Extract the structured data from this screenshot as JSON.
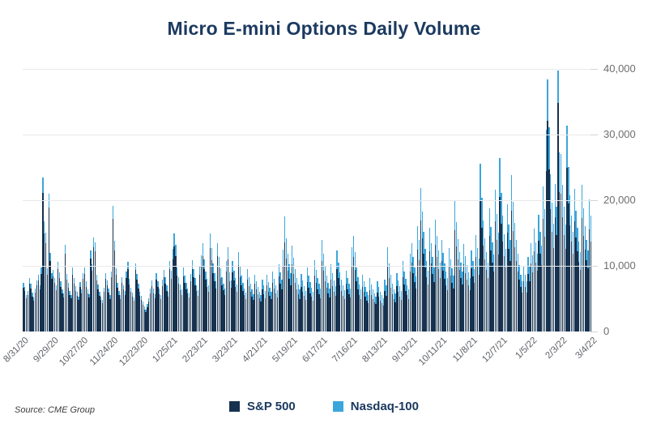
{
  "title": "Micro E-mini Options Daily Volume",
  "source_note": "Source: CME Group",
  "colors": {
    "sp500": "#16324F",
    "nasdaq": "#3BA6DC",
    "title_text": "#1C3A60",
    "axis_label_gray": "#6E6E6E",
    "gridline": "#E9E9E9"
  },
  "legend": {
    "items": [
      {
        "label": "S&P 500",
        "color": "#16324F"
      },
      {
        "label": "Nasdaq-100",
        "color": "#3BA6DC"
      }
    ]
  },
  "chart_data": {
    "type": "bar",
    "stacked": true,
    "title": "Micro E-mini Options Daily Volume",
    "xlabel": "",
    "ylabel": "",
    "ylim": [
      0,
      40000
    ],
    "y_ticks": [
      0,
      10000,
      20000,
      30000,
      40000
    ],
    "y_tick_labels": [
      "0",
      "10,000",
      "20,000",
      "30,000",
      "40,000"
    ],
    "y_axis_side": "right",
    "grid": "horizontal",
    "legend_position": "bottom",
    "x_tick_every": 20,
    "x_tick_labels": [
      "8/31/20",
      "9/29/20",
      "10/27/20",
      "11/24/20",
      "12/23/20",
      "1/25/21",
      "2/23/21",
      "3/23/21",
      "4/21/21",
      "5/19/21",
      "6/17/21",
      "7/16/21",
      "8/13/21",
      "9/13/21",
      "10/11/21",
      "11/8/21",
      "12/7/21",
      "1/5/22",
      "2/3/22",
      "3/4/22"
    ],
    "series": [
      {
        "name": "S&P 500",
        "color": "#16324F",
        "values": [
          6700,
          6150,
          5100,
          5600,
          7300,
          6600,
          5350,
          4700,
          5950,
          7000,
          7800,
          6400,
          8800,
          21100,
          15000,
          13500,
          8650,
          18900,
          10750,
          8000,
          8450,
          7380,
          6300,
          9500,
          8100,
          6840,
          5760,
          5220,
          11850,
          7920,
          6660,
          5580,
          5040,
          8700,
          7290,
          6200,
          5400,
          4770,
          6750,
          5760,
          8000,
          8800,
          6840,
          5760,
          5130,
          11150,
          9200,
          12850,
          12250,
          7830,
          6480,
          5490,
          4770,
          4320,
          6030,
          8000,
          7020,
          5940,
          4950,
          8250,
          17200,
          12400,
          8600,
          6660,
          5580,
          4950,
          7450,
          6390,
          5580,
          8150,
          9500,
          7200,
          6030,
          5310,
          4680,
          9350,
          7920,
          6570,
          5490,
          4860,
          4100,
          3380,
          2940,
          3740,
          4540,
          5780,
          6900,
          5840,
          5040,
          7850,
          6800,
          5720,
          4930,
          6950,
          8250,
          7300,
          6150,
          5360,
          9450,
          8050,
          11000,
          12950,
          11500,
          8550,
          7250,
          6300,
          5600,
          8450,
          7400,
          6450,
          5750,
          5140,
          7650,
          9450,
          8250,
          7050,
          6180,
          5480,
          8600,
          10050,
          11500,
          9450,
          7900,
          6850,
          6100,
          12700,
          10850,
          8900,
          7600,
          6600,
          11500,
          9700,
          8200,
          7100,
          6250,
          5550,
          9100,
          10950,
          7650,
          6650,
          9050,
          7800,
          6800,
          6050,
          10100,
          8300,
          7100,
          6200,
          5550,
          4950,
          7950,
          6950,
          6100,
          5350,
          4770,
          7300,
          6450,
          5700,
          5100,
          4600,
          6450,
          5700,
          5050,
          7000,
          6100,
          5450,
          4900,
          7400,
          6500,
          5800,
          5150,
          8350,
          7300,
          6400,
          9900,
          13600,
          11100,
          9300,
          8050,
          7050,
          10200,
          8750,
          7400,
          6400,
          5650,
          5000,
          6850,
          6100,
          5400,
          4850,
          7550,
          6650,
          5850,
          5250,
          4700,
          8500,
          7350,
          6400,
          5700,
          5100,
          10800,
          9200,
          7700,
          6650,
          5800,
          5150,
          7950,
          6950,
          6100,
          5400,
          9550,
          8200,
          7000,
          6150,
          5450,
          4900,
          7250,
          6400,
          5700,
          5150,
          9950,
          11350,
          9400,
          7600,
          6450,
          5600,
          5000,
          6750,
          6000,
          5300,
          4750,
          4300,
          6300,
          5600,
          5000,
          4500,
          4150,
          5900,
          5300,
          4750,
          4350,
          3950,
          6150,
          5450,
          9950,
          8100,
          6700,
          5700,
          5000,
          4500,
          6900,
          6050,
          5350,
          4800,
          8300,
          7150,
          6200,
          5500,
          5000,
          9150,
          10500,
          8850,
          7500,
          6500,
          12500,
          10850,
          16900,
          14200,
          11800,
          9750,
          8300,
          7200,
          12250,
          10400,
          8750,
          7500,
          13250,
          11300,
          9550,
          8150,
          10800,
          9300,
          8050,
          7050,
          6300,
          9850,
          8550,
          7450,
          6600,
          15450,
          12950,
          10950,
          9400,
          8150,
          7150,
          10300,
          8900,
          7850,
          7000,
          6300,
          9600,
          8400,
          7400,
          11400,
          9850,
          8600,
          19850,
          15800,
          13100,
          11000,
          9400,
          8150,
          14600,
          12350,
          10550,
          9100,
          16750,
          13900,
          11700,
          20500,
          16400,
          13650,
          11500,
          9750,
          15050,
          12650,
          10800,
          18450,
          15300,
          12800,
          10800,
          9150,
          7850,
          6750,
          5900,
          7700,
          6750,
          5950,
          8750,
          7700,
          10400,
          9000,
          12200,
          10550,
          9250,
          13800,
          11800,
          10150,
          17150,
          14450,
          24450,
          32100,
          24700,
          18600,
          15200,
          12700,
          17450,
          14750,
          34800,
          21200,
          20950,
          17400,
          14750,
          12650,
          25000,
          19500,
          16150,
          13650,
          11800,
          16850,
          14300,
          12250,
          10650,
          9400,
          17300,
          14600,
          12500,
          10850,
          9600,
          15600,
          13650
        ]
      },
      {
        "name": "Nasdaq-100",
        "color": "#3BA6DC",
        "values": [
          700,
          650,
          500,
          600,
          800,
          700,
          550,
          500,
          650,
          800,
          900,
          700,
          1000,
          2300,
          1800,
          1600,
          950,
          2100,
          1250,
          900,
          950,
          820,
          700,
          1100,
          900,
          760,
          640,
          580,
          1350,
          880,
          740,
          620,
          560,
          1000,
          810,
          700,
          600,
          530,
          750,
          640,
          900,
          1000,
          760,
          640,
          570,
          1250,
          1000,
          1450,
          1350,
          870,
          720,
          610,
          530,
          480,
          670,
          900,
          780,
          660,
          550,
          950,
          1900,
          1400,
          1000,
          740,
          620,
          550,
          850,
          710,
          620,
          950,
          1100,
          800,
          670,
          590,
          520,
          1050,
          880,
          730,
          610,
          540,
          500,
          420,
          360,
          460,
          560,
          720,
          900,
          760,
          660,
          1050,
          900,
          780,
          670,
          950,
          1150,
          1000,
          850,
          740,
          1350,
          1150,
          1600,
          1950,
          1700,
          1250,
          1050,
          900,
          800,
          1250,
          1100,
          950,
          850,
          760,
          1150,
          1450,
          1250,
          1050,
          920,
          820,
          1300,
          1550,
          1900,
          1550,
          1300,
          1150,
          1000,
          2200,
          1850,
          1500,
          1300,
          1100,
          2000,
          1700,
          1400,
          1200,
          1050,
          950,
          1600,
          1950,
          1350,
          1150,
          1750,
          1500,
          1300,
          1150,
          2000,
          1600,
          1400,
          1200,
          1050,
          950,
          1550,
          1350,
          1200,
          1050,
          930,
          1400,
          1250,
          1100,
          1000,
          900,
          1450,
          1300,
          1150,
          1600,
          1400,
          1250,
          1100,
          1700,
          1500,
          1300,
          1150,
          1950,
          1700,
          1500,
          2600,
          3900,
          3100,
          2500,
          2150,
          1850,
          2900,
          2450,
          2100,
          1800,
          1550,
          1400,
          1950,
          1700,
          1500,
          1350,
          2150,
          1850,
          1650,
          1450,
          1300,
          2400,
          2050,
          1800,
          1600,
          1400,
          3100,
          2600,
          2200,
          1850,
          1600,
          1450,
          2250,
          1950,
          1700,
          1500,
          2750,
          2300,
          2000,
          1750,
          1550,
          1400,
          2050,
          1800,
          1600,
          1450,
          2850,
          3250,
          2700,
          2200,
          1850,
          1600,
          1400,
          1950,
          1700,
          1500,
          1350,
          1200,
          1800,
          1600,
          1400,
          1300,
          1150,
          1700,
          1500,
          1350,
          1250,
          1150,
          1750,
          1550,
          2850,
          2300,
          1900,
          1600,
          1400,
          1300,
          2000,
          1750,
          1550,
          1400,
          2400,
          2050,
          1800,
          1600,
          1400,
          2650,
          3000,
          2550,
          2200,
          1900,
          3600,
          3150,
          4900,
          4100,
          3400,
          2850,
          2400,
          2100,
          3550,
          3000,
          2550,
          2200,
          3850,
          3300,
          2750,
          2350,
          3100,
          2700,
          2350,
          2050,
          1800,
          2850,
          2450,
          2150,
          1900,
          4450,
          3750,
          3150,
          2700,
          2350,
          2050,
          3000,
          2600,
          2250,
          2000,
          1800,
          2800,
          2400,
          2100,
          3300,
          2850,
          2500,
          5750,
          4600,
          3800,
          3200,
          2700,
          2350,
          4200,
          3550,
          3050,
          2600,
          4850,
          4000,
          3400,
          5900,
          4700,
          3950,
          3300,
          2850,
          4350,
          3650,
          3100,
          5350,
          4400,
          3700,
          3100,
          2650,
          2250,
          1950,
          1700,
          2200,
          1950,
          1750,
          2550,
          2200,
          3000,
          2600,
          3500,
          3050,
          2650,
          4000,
          3400,
          2950,
          4950,
          4150,
          6250,
          6300,
          6400,
          5400,
          4400,
          3700,
          5050,
          4250,
          4900,
          6100,
          6050,
          5000,
          4250,
          3650,
          6300,
          5600,
          4650,
          3950,
          3400,
          4850,
          4100,
          3550,
          3050,
          2700,
          5000,
          4200,
          3600,
          3150,
          2800,
          4500,
          3950
        ]
      }
    ]
  }
}
